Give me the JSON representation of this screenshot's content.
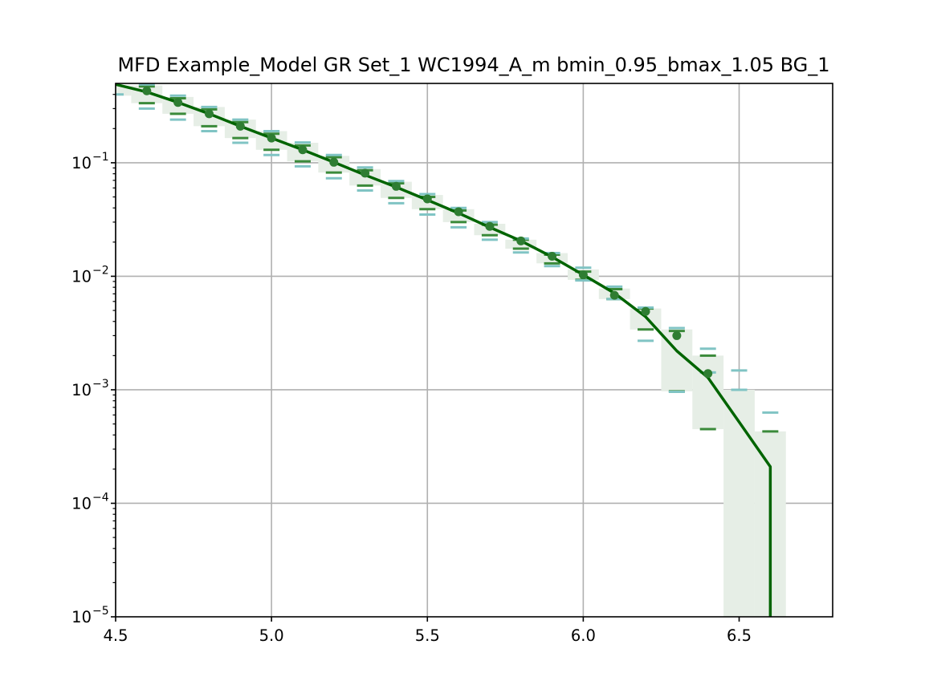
{
  "chart_data": {
    "type": "line",
    "title": "MFD Example_Model GR Set_1 WC1994_A_m bmin_0.95_bmax_1.05 BG_1",
    "xlabel": "",
    "ylabel": "",
    "xlim": [
      4.5,
      6.8
    ],
    "ylim": [
      1e-05,
      0.5
    ],
    "yscale": "log",
    "grid": true,
    "x_ticks": [
      4.5,
      5.0,
      5.5,
      6.0,
      6.5
    ],
    "x_tick_labels": [
      "4.5",
      "5.0",
      "5.5",
      "6.0",
      "6.5"
    ],
    "y_ticks": [
      {
        "value": 1e-05,
        "base": "10",
        "exp": "−5"
      },
      {
        "value": 0.0001,
        "base": "10",
        "exp": "−4"
      },
      {
        "value": 0.001,
        "base": "10",
        "exp": "−3"
      },
      {
        "value": 0.01,
        "base": "10",
        "exp": "−2"
      },
      {
        "value": 0.1,
        "base": "10",
        "exp": "−1"
      }
    ],
    "colors": {
      "line": "#006400",
      "points": "#2e7d32",
      "band": "#e6eee6",
      "dark_bars": "#3a8a3a",
      "teal_bars": "#80c4c4",
      "grid": "#b0b0b0"
    },
    "band": [
      {
        "x": 4.5,
        "lo": 0.39,
        "hi": 0.48
      },
      {
        "x": 4.6,
        "lo": 0.335,
        "hi": 0.48
      },
      {
        "x": 4.7,
        "lo": 0.27,
        "hi": 0.38
      },
      {
        "x": 4.8,
        "lo": 0.21,
        "hi": 0.31
      },
      {
        "x": 4.9,
        "lo": 0.165,
        "hi": 0.24
      },
      {
        "x": 5.0,
        "lo": 0.13,
        "hi": 0.19
      },
      {
        "x": 5.1,
        "lo": 0.103,
        "hi": 0.15
      },
      {
        "x": 5.2,
        "lo": 0.082,
        "hi": 0.115
      },
      {
        "x": 5.3,
        "lo": 0.063,
        "hi": 0.088
      },
      {
        "x": 5.4,
        "lo": 0.049,
        "hi": 0.068
      },
      {
        "x": 5.5,
        "lo": 0.039,
        "hi": 0.052
      },
      {
        "x": 5.6,
        "lo": 0.03,
        "hi": 0.039
      },
      {
        "x": 5.7,
        "lo": 0.023,
        "hi": 0.029
      },
      {
        "x": 5.8,
        "lo": 0.0175,
        "hi": 0.021
      },
      {
        "x": 5.9,
        "lo": 0.013,
        "hi": 0.016
      },
      {
        "x": 6.0,
        "lo": 0.0093,
        "hi": 0.0115
      },
      {
        "x": 6.1,
        "lo": 0.0063,
        "hi": 0.0078
      },
      {
        "x": 6.2,
        "lo": 0.0034,
        "hi": 0.0052
      },
      {
        "x": 6.3,
        "lo": 0.00097,
        "hi": 0.0034
      },
      {
        "x": 6.4,
        "lo": 0.00045,
        "hi": 0.002
      },
      {
        "x": 6.5,
        "lo": 1e-05,
        "hi": 0.001
      },
      {
        "x": 6.6,
        "lo": 1e-05,
        "hi": 0.00043
      }
    ],
    "series": [
      {
        "kind": "line",
        "x": [
          4.5,
          4.6,
          4.7,
          4.8,
          4.9,
          5.0,
          5.1,
          5.2,
          5.3,
          5.4,
          5.5,
          5.6,
          5.7,
          5.8,
          5.9,
          6.0,
          6.1,
          6.2,
          6.3,
          6.4,
          6.5,
          6.6,
          6.6
        ],
        "y": [
          0.49,
          0.42,
          0.34,
          0.27,
          0.21,
          0.165,
          0.13,
          0.101,
          0.078,
          0.061,
          0.047,
          0.036,
          0.027,
          0.0205,
          0.0148,
          0.0103,
          0.0071,
          0.0044,
          0.0022,
          0.00128,
          0.00052,
          0.00021,
          1e-05
        ]
      },
      {
        "kind": "points",
        "x": [
          4.6,
          4.7,
          4.8,
          4.9,
          5.0,
          5.1,
          5.2,
          5.3,
          5.4,
          5.5,
          5.6,
          5.7,
          5.8,
          5.9,
          6.0,
          6.1,
          6.2,
          6.3,
          6.4
        ],
        "y": [
          0.43,
          0.34,
          0.27,
          0.21,
          0.165,
          0.13,
          0.101,
          0.081,
          0.062,
          0.048,
          0.037,
          0.0275,
          0.0205,
          0.015,
          0.0103,
          0.0068,
          0.0049,
          0.003,
          0.00139
        ]
      },
      {
        "kind": "dark_bars",
        "x": [
          4.6,
          4.6,
          4.7,
          4.7,
          4.8,
          4.8,
          4.9,
          4.9,
          5.0,
          5.0,
          5.1,
          5.1,
          5.2,
          5.2,
          5.3,
          5.3,
          5.4,
          5.4,
          5.5,
          5.5,
          5.6,
          5.6,
          5.7,
          5.7,
          5.8,
          5.8,
          5.9,
          5.9,
          6.0,
          6.0,
          6.1,
          6.1,
          6.2,
          6.2,
          6.3,
          6.3,
          6.4,
          6.4,
          6.5,
          6.6
        ],
        "y": [
          0.335,
          0.47,
          0.27,
          0.37,
          0.21,
          0.295,
          0.165,
          0.228,
          0.13,
          0.18,
          0.103,
          0.142,
          0.082,
          0.112,
          0.063,
          0.086,
          0.049,
          0.066,
          0.039,
          0.05,
          0.03,
          0.038,
          0.023,
          0.0285,
          0.0175,
          0.021,
          0.013,
          0.0155,
          0.0093,
          0.011,
          0.0063,
          0.0077,
          0.0034,
          0.0052,
          0.00097,
          0.0033,
          0.00045,
          0.002,
          0.001,
          0.00043
        ]
      },
      {
        "kind": "teal_bars",
        "x": [
          4.5,
          4.6,
          4.6,
          4.7,
          4.7,
          4.8,
          4.8,
          4.9,
          4.9,
          5.0,
          5.0,
          5.1,
          5.1,
          5.2,
          5.2,
          5.3,
          5.3,
          5.4,
          5.4,
          5.5,
          5.5,
          5.6,
          5.6,
          5.7,
          5.7,
          5.8,
          5.8,
          5.9,
          5.9,
          6.0,
          6.0,
          6.1,
          6.1,
          6.2,
          6.2,
          6.3,
          6.3,
          6.4,
          6.4,
          6.5,
          6.5,
          6.6
        ],
        "y": [
          0.4,
          0.3,
          0.49,
          0.24,
          0.39,
          0.19,
          0.31,
          0.15,
          0.24,
          0.117,
          0.19,
          0.093,
          0.151,
          0.073,
          0.117,
          0.057,
          0.091,
          0.044,
          0.069,
          0.035,
          0.053,
          0.027,
          0.04,
          0.021,
          0.03,
          0.0162,
          0.0215,
          0.0123,
          0.016,
          0.0092,
          0.0119,
          0.0063,
          0.0081,
          0.0027,
          0.0053,
          0.00096,
          0.0035,
          0.00142,
          0.0023,
          0.001,
          0.00148,
          0.00063
        ]
      }
    ]
  }
}
